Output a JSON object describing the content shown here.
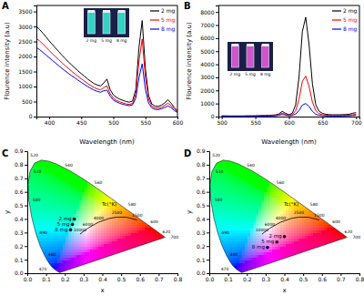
{
  "chart_data": [
    {
      "type": "line",
      "title": "A",
      "x_label": "Wavelength (nm)",
      "y_label": "Flourence intensity (a.u)",
      "x": [
        380,
        385,
        390,
        395,
        400,
        405,
        410,
        415,
        420,
        425,
        430,
        435,
        440,
        445,
        450,
        455,
        460,
        465,
        470,
        475,
        480,
        485,
        490,
        495,
        500,
        505,
        510,
        515,
        520,
        525,
        530,
        535,
        540,
        545,
        550,
        555,
        560,
        565,
        570,
        575,
        580,
        585,
        590,
        595,
        600
      ],
      "series": [
        {
          "name": "2 mg",
          "color": "#000000",
          "values": [
            3000,
            2900,
            2780,
            2650,
            2520,
            2400,
            2280,
            2160,
            2040,
            1930,
            1820,
            1720,
            1620,
            1520,
            1430,
            1340,
            1250,
            1170,
            1100,
            1050,
            1020,
            1120,
            1250,
            900,
            720,
            640,
            580,
            540,
            500,
            480,
            520,
            900,
            2300,
            3200,
            1600,
            700,
            420,
            350,
            340,
            380,
            450,
            560,
            450,
            300,
            200
          ]
        },
        {
          "name": "5 mg",
          "color": "#ff0000",
          "values": [
            2600,
            2520,
            2420,
            2310,
            2200,
            2090,
            1990,
            1890,
            1790,
            1690,
            1600,
            1510,
            1420,
            1340,
            1260,
            1180,
            1100,
            1030,
            970,
            920,
            890,
            960,
            1030,
            760,
            610,
            540,
            490,
            455,
            420,
            405,
            440,
            750,
            1850,
            2580,
            1300,
            580,
            350,
            290,
            280,
            310,
            370,
            450,
            370,
            250,
            170
          ]
        },
        {
          "name": "8 mg",
          "color": "#0000ff",
          "values": [
            2300,
            2230,
            2140,
            2050,
            1960,
            1870,
            1780,
            1690,
            1600,
            1520,
            1440,
            1360,
            1290,
            1210,
            1140,
            1070,
            1000,
            940,
            880,
            840,
            810,
            860,
            880,
            680,
            550,
            490,
            440,
            410,
            380,
            365,
            390,
            610,
            1300,
            1760,
            900,
            450,
            290,
            240,
            230,
            260,
            300,
            360,
            300,
            200,
            140
          ]
        }
      ],
      "xlim": [
        380,
        600
      ],
      "xticks": [
        400,
        450,
        500,
        550,
        600
      ],
      "ylim": [
        0,
        3700
      ],
      "yticks": [
        0,
        500,
        1000,
        1500,
        2000,
        2500,
        3000,
        3500
      ],
      "legend": "upper right"
    },
    {
      "type": "line",
      "title": "B",
      "x_label": "Wavelength (nm)",
      "y_label": "Flourence intensity (a.u)",
      "x": [
        500,
        505,
        510,
        515,
        520,
        525,
        530,
        535,
        540,
        545,
        550,
        555,
        560,
        565,
        570,
        575,
        580,
        585,
        590,
        595,
        600,
        605,
        610,
        615,
        620,
        625,
        630,
        635,
        640,
        645,
        650,
        655,
        660,
        665,
        670,
        675,
        680,
        685,
        690,
        695,
        700
      ],
      "series": [
        {
          "name": "2 mg",
          "color": "#000000",
          "values": [
            60,
            55,
            50,
            50,
            50,
            50,
            50,
            55,
            60,
            60,
            65,
            70,
            80,
            90,
            100,
            110,
            130,
            200,
            400,
            250,
            150,
            250,
            900,
            3000,
            6500,
            7600,
            5500,
            2500,
            900,
            400,
            250,
            180,
            150,
            140,
            140,
            140,
            150,
            160,
            180,
            260,
            300
          ]
        },
        {
          "name": "5 mg",
          "color": "#ff0000",
          "values": [
            40,
            38,
            35,
            35,
            35,
            35,
            35,
            38,
            40,
            40,
            45,
            50,
            55,
            60,
            70,
            80,
            95,
            150,
            260,
            170,
            100,
            150,
            450,
            1300,
            2700,
            3100,
            2300,
            1100,
            450,
            220,
            150,
            110,
            90,
            85,
            85,
            85,
            90,
            95,
            110,
            150,
            170
          ]
        },
        {
          "name": "8 mg",
          "color": "#0000ff",
          "values": [
            30,
            28,
            25,
            25,
            25,
            25,
            25,
            28,
            30,
            30,
            32,
            35,
            38,
            42,
            48,
            55,
            65,
            100,
            160,
            110,
            70,
            90,
            200,
            450,
            880,
            1000,
            780,
            400,
            180,
            100,
            70,
            55,
            50,
            48,
            48,
            48,
            50,
            55,
            65,
            85,
            100
          ]
        }
      ],
      "xlim": [
        495,
        705
      ],
      "xticks": [
        500,
        550,
        600,
        650,
        700
      ],
      "ylim": [
        0,
        8500
      ],
      "yticks": [
        0,
        1000,
        2000,
        3000,
        4000,
        5000,
        6000,
        7000,
        8000
      ],
      "legend": "upper right"
    },
    {
      "type": "scatter",
      "title": "C",
      "x_label": "x",
      "y_label": "y",
      "xlim": [
        0,
        0.8
      ],
      "xticks": [
        {
          "value": 0,
          "label": "0.0"
        },
        0.1,
        0.2,
        0.3,
        0.4,
        0.5,
        0.6,
        0.7,
        0.8
      ],
      "ylim": [
        0,
        0.9
      ],
      "yticks": [
        {
          "value": 0,
          "label": "0.0"
        },
        0.1,
        0.2,
        0.3,
        0.4,
        0.5,
        0.6,
        0.7,
        0.8,
        0.9
      ],
      "points": {
        "labels": [
          "2 mg",
          "5 mg",
          "8 mg"
        ],
        "x": [
          0.25,
          0.24,
          0.23
        ],
        "y": [
          0.4,
          0.36,
          0.32
        ]
      },
      "spectral_locus": {
        "labels": [
          null,
          null,
          null,
          null,
          null,
          "470",
          null,
          "480",
          null,
          "490",
          null,
          "500",
          null,
          "510",
          null,
          "520",
          null,
          null,
          "540",
          null,
          "560",
          null,
          "580",
          null,
          "600",
          "620",
          null,
          "700"
        ],
        "x": [
          0.1741,
          0.1714,
          0.1644,
          0.1566,
          0.144,
          0.1241,
          0.1096,
          0.0913,
          0.0687,
          0.0454,
          0.0235,
          0.0082,
          0.0039,
          0.0139,
          0.0389,
          0.0743,
          0.1142,
          0.1547,
          0.2296,
          0.3016,
          0.3731,
          0.4441,
          0.5125,
          0.5752,
          0.627,
          0.6915,
          0.719,
          0.7347
        ],
        "y": [
          0.005,
          0.0051,
          0.0109,
          0.0177,
          0.0297,
          0.0578,
          0.0868,
          0.1327,
          0.2007,
          0.295,
          0.4127,
          0.5384,
          0.6548,
          0.7502,
          0.812,
          0.8338,
          0.8262,
          0.8059,
          0.7543,
          0.6923,
          0.6245,
          0.5547,
          0.4866,
          0.4242,
          0.3725,
          0.3083,
          0.2809,
          0.2653
        ]
      },
      "planckian_locus": {
        "label": "Tc(°K)",
        "labels": [
          "1500",
          null,
          "2500",
          null,
          "4000",
          "6000",
          "10000"
        ],
        "x": [
          0.5857,
          0.5267,
          0.477,
          0.4369,
          0.3805,
          0.3221,
          0.2807
        ],
        "y": [
          0.3931,
          0.4133,
          0.4137,
          0.4041,
          0.3768,
          0.3318,
          0.2884
        ]
      }
    },
    {
      "type": "scatter",
      "title": "D",
      "x_label": "x",
      "y_label": "y",
      "xlim": [
        0,
        0.8
      ],
      "xticks": [
        {
          "value": 0,
          "label": "0.0"
        },
        0.1,
        0.2,
        0.3,
        0.4,
        0.5,
        0.6,
        0.7,
        0.8
      ],
      "ylim": [
        0,
        0.9
      ],
      "yticks": [
        {
          "value": 0,
          "label": "0.0"
        },
        0.1,
        0.2,
        0.3,
        0.4,
        0.5,
        0.6,
        0.7,
        0.8,
        0.9
      ],
      "points": {
        "labels": [
          "2 mg",
          "5 mg",
          "8 mg"
        ],
        "x": [
          0.4,
          0.36,
          0.31
        ],
        "y": [
          0.27,
          0.23,
          0.19
        ]
      },
      "spectral_locus": {
        "labels": [
          null,
          null,
          null,
          null,
          null,
          "470",
          null,
          "480",
          null,
          "490",
          null,
          "500",
          null,
          "510",
          null,
          "520",
          null,
          null,
          "540",
          null,
          "560",
          null,
          "580",
          null,
          "600",
          "620",
          null,
          "700"
        ],
        "x": [
          0.1741,
          0.1714,
          0.1644,
          0.1566,
          0.144,
          0.1241,
          0.1096,
          0.0913,
          0.0687,
          0.0454,
          0.0235,
          0.0082,
          0.0039,
          0.0139,
          0.0389,
          0.0743,
          0.1142,
          0.1547,
          0.2296,
          0.3016,
          0.3731,
          0.4441,
          0.5125,
          0.5752,
          0.627,
          0.6915,
          0.719,
          0.7347
        ],
        "y": [
          0.005,
          0.0051,
          0.0109,
          0.0177,
          0.0297,
          0.0578,
          0.0868,
          0.1327,
          0.2007,
          0.295,
          0.4127,
          0.5384,
          0.6548,
          0.7502,
          0.812,
          0.8338,
          0.8262,
          0.8059,
          0.7543,
          0.6923,
          0.6245,
          0.5547,
          0.4866,
          0.4242,
          0.3725,
          0.3083,
          0.2809,
          0.2653
        ]
      },
      "planckian_locus": {
        "label": "Tc(°K)",
        "labels": [
          "1500",
          null,
          "2500",
          null,
          "4000",
          "6000",
          "10000"
        ],
        "x": [
          0.5857,
          0.5267,
          0.477,
          0.4369,
          0.3805,
          0.3221,
          0.2807
        ],
        "y": [
          0.3931,
          0.4133,
          0.4137,
          0.4041,
          0.3768,
          0.3318,
          0.2884
        ]
      }
    }
  ]
}
